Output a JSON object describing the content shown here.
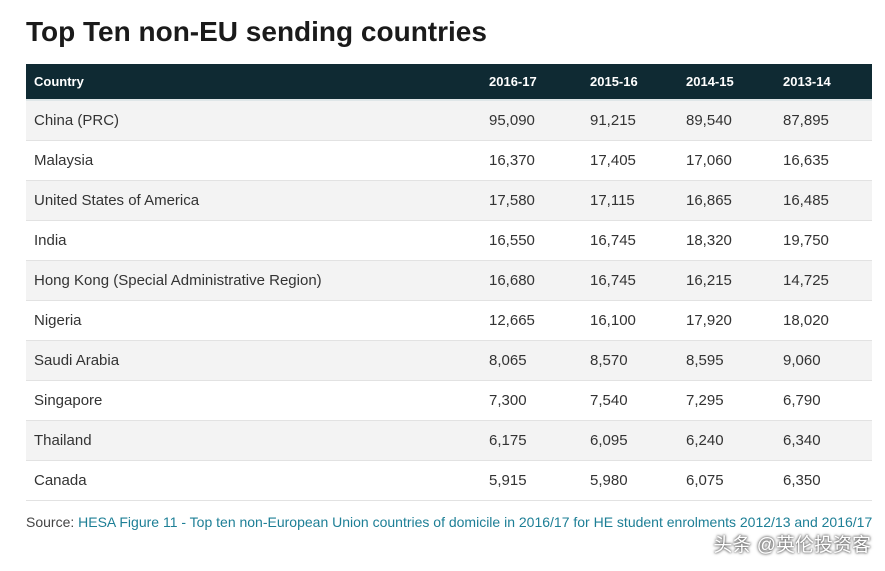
{
  "title": "Top Ten non-EU sending countries",
  "table": {
    "columns": [
      "Country",
      "2016-17",
      "2015-16",
      "2014-15",
      "2013-14"
    ],
    "rows": [
      [
        "China (PRC)",
        "95,090",
        "91,215",
        "89,540",
        "87,895"
      ],
      [
        "Malaysia",
        "16,370",
        "17,405",
        "17,060",
        "16,635"
      ],
      [
        "United States of America",
        "17,580",
        "17,115",
        "16,865",
        "16,485"
      ],
      [
        "India",
        "16,550",
        "16,745",
        "18,320",
        "19,750"
      ],
      [
        "Hong Kong (Special Administrative Region)",
        "16,680",
        "16,745",
        "16,215",
        "14,725"
      ],
      [
        "Nigeria",
        "12,665",
        "16,100",
        "17,920",
        "18,020"
      ],
      [
        "Saudi Arabia",
        "8,065",
        "8,570",
        "8,595",
        "9,060"
      ],
      [
        "Singapore",
        "7,300",
        "7,540",
        "7,295",
        "6,790"
      ],
      [
        "Thailand",
        "6,175",
        "6,095",
        "6,240",
        "6,340"
      ],
      [
        "Canada",
        "5,915",
        "5,980",
        "6,075",
        "6,350"
      ]
    ]
  },
  "source": {
    "label": "Source:",
    "link": "HESA Figure 11 - Top ten non-European Union countries of domicile in 2016/17 for HE student enrolments 2012/13 and 2016/17"
  },
  "watermark": "头条 @英伦投资客"
}
